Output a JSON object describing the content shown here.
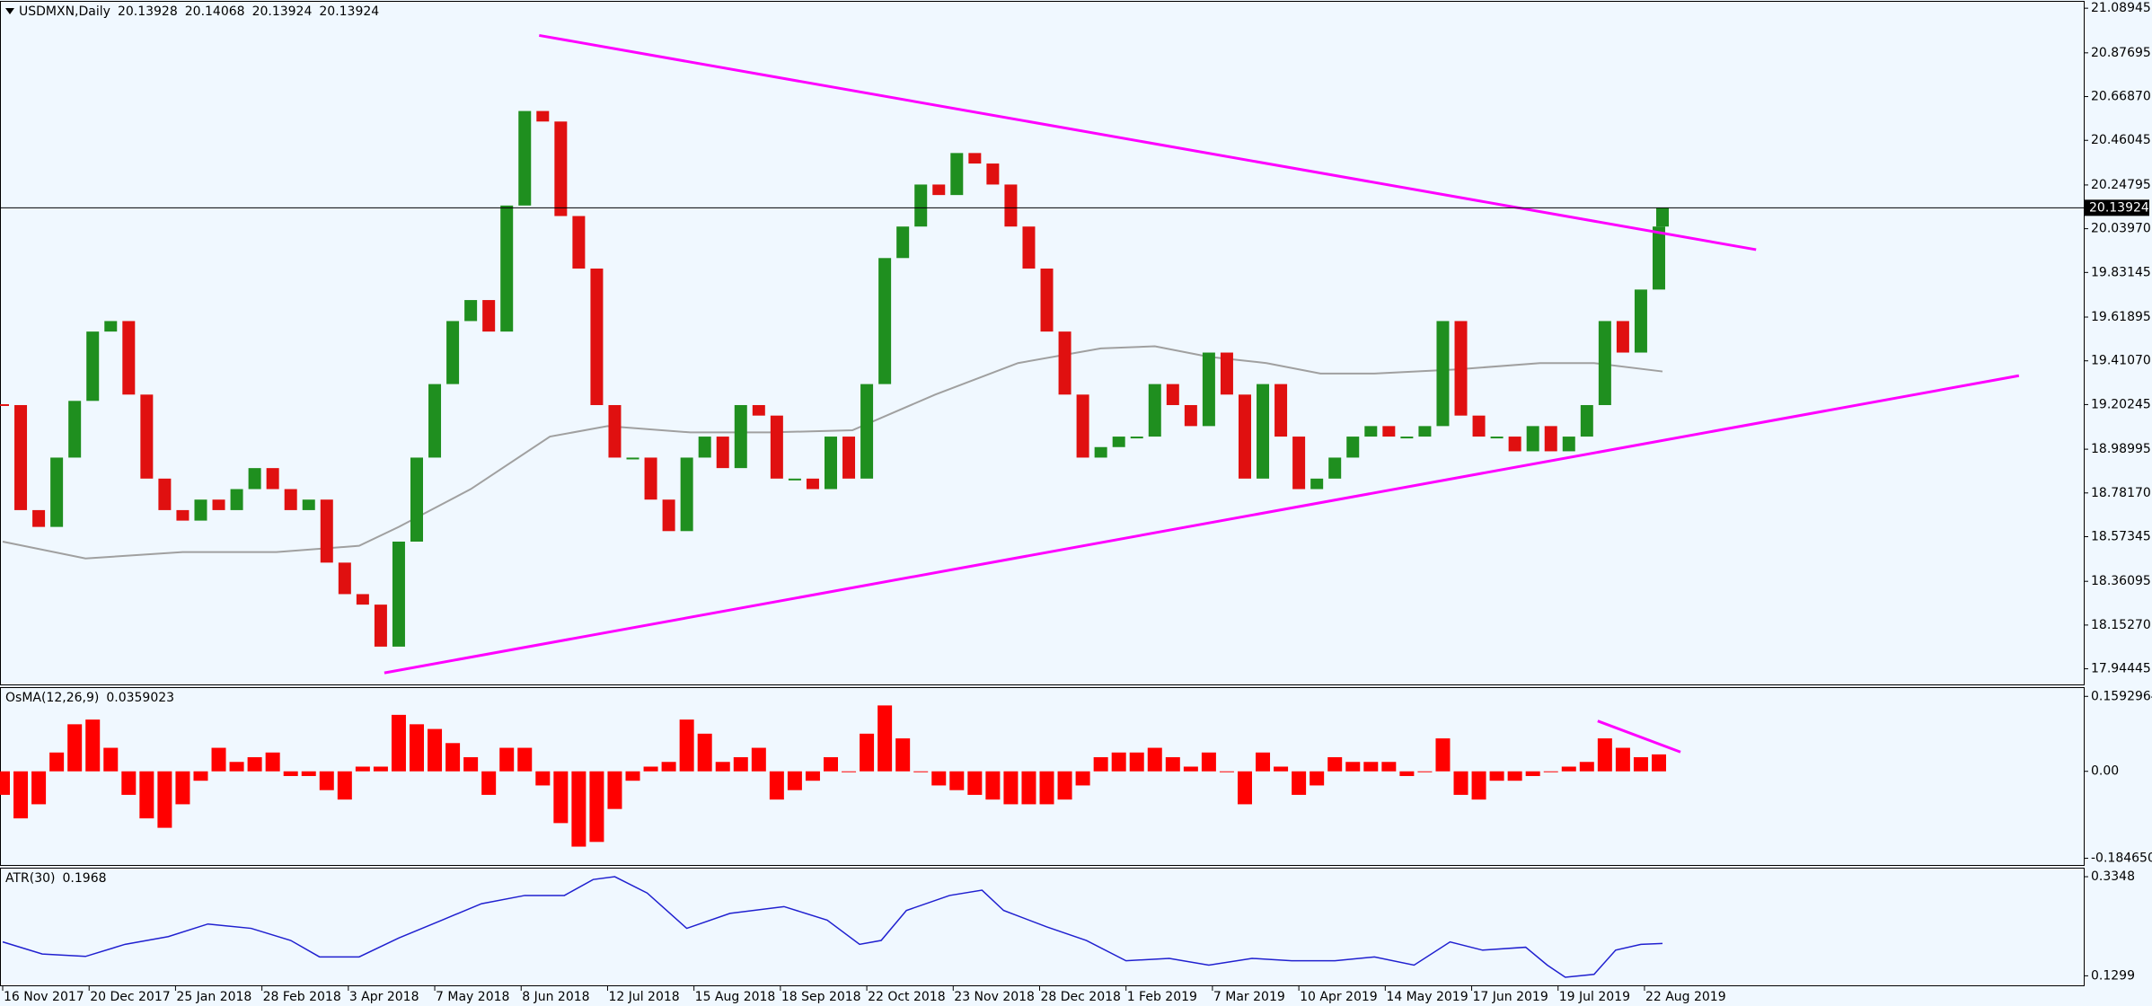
{
  "chart_data": [
    {
      "type": "candlestick",
      "title": "USDMXN,Daily",
      "ohlc": [
        20.13928,
        20.14068,
        20.13924,
        20.13924
      ],
      "x": [
        0,
        5,
        10,
        15,
        20,
        25,
        30,
        35,
        40,
        45,
        50,
        55,
        60,
        65,
        70,
        75,
        80,
        85,
        90,
        95,
        100,
        105,
        110,
        115,
        120,
        125,
        130,
        135,
        140,
        145,
        150,
        155,
        160,
        165,
        170,
        175,
        180,
        185,
        190,
        195,
        200,
        205,
        210,
        215,
        220,
        225,
        230,
        235,
        240,
        245,
        250,
        255,
        260,
        265,
        270,
        275,
        280,
        285,
        290,
        295,
        300,
        305,
        310,
        315,
        320,
        325,
        330,
        335,
        340,
        345,
        350,
        355,
        360,
        365,
        370,
        375,
        380,
        385,
        390,
        395,
        400,
        405,
        410,
        415,
        420,
        425,
        430,
        435,
        440,
        445,
        450,
        455,
        460,
        461
      ],
      "values": [
        19.2,
        18.7,
        18.62,
        18.95,
        19.22,
        19.55,
        19.6,
        19.25,
        18.85,
        18.7,
        18.65,
        18.75,
        18.7,
        18.8,
        18.9,
        18.8,
        18.7,
        18.75,
        18.45,
        18.3,
        18.25,
        18.05,
        18.55,
        18.95,
        19.3,
        19.6,
        19.7,
        19.55,
        20.15,
        20.6,
        20.55,
        20.1,
        19.85,
        19.2,
        18.95,
        18.95,
        18.75,
        18.6,
        18.95,
        19.05,
        18.9,
        19.2,
        19.15,
        18.85,
        18.85,
        18.8,
        19.05,
        18.85,
        19.3,
        19.9,
        20.05,
        20.25,
        20.2,
        20.4,
        20.35,
        20.25,
        20.05,
        19.85,
        19.55,
        19.25,
        18.95,
        19.0,
        19.05,
        19.05,
        19.3,
        19.2,
        19.1,
        19.45,
        19.25,
        18.85,
        19.3,
        19.05,
        18.8,
        18.85,
        18.95,
        19.05,
        19.1,
        19.05,
        19.05,
        19.1,
        19.6,
        19.15,
        19.05,
        19.05,
        18.98,
        19.1,
        18.98,
        19.05,
        19.2,
        19.6,
        19.45,
        19.75,
        20.05,
        20.13924
      ],
      "up_color": "#1f8f1f",
      "down_color": "#e01010",
      "xlim": [
        0,
        578
      ],
      "ylim": [
        17.87,
        21.12
      ],
      "yticks": [
        21.08945,
        20.87695,
        {
          "value": 20.6687,
          "label": "20.66870"
        },
        20.46045,
        20.24795,
        {
          "value": 20.0397,
          "label": "20.03970"
        },
        19.83145,
        19.61895,
        {
          "value": 19.4107,
          "label": "19.41070"
        },
        19.20245,
        18.98995,
        {
          "value": 18.7817,
          "label": "18.78170"
        },
        18.57345,
        18.36095,
        {
          "value": 18.1527,
          "label": "18.15270"
        },
        17.94445
      ],
      "last_price": 20.13924,
      "ma": {
        "color": "#a0a0a0",
        "x": [
          0,
          23,
          50,
          76,
          99,
          110,
          130,
          152,
          168,
          191,
          213,
          236,
          259,
          282,
          305,
          320,
          335,
          351,
          366,
          381,
          404,
          427,
          442,
          461
        ],
        "values": [
          18.55,
          18.47,
          18.5,
          18.5,
          18.53,
          18.62,
          18.8,
          19.05,
          19.1,
          19.07,
          19.07,
          19.08,
          19.25,
          19.4,
          19.47,
          19.48,
          19.43,
          19.4,
          19.35,
          19.35,
          19.37,
          19.4,
          19.4,
          19.36
        ]
      },
      "trendlines": [
        {
          "color": "#ff00ff",
          "x": [
            149,
            487
          ],
          "values": [
            20.96,
            19.94
          ]
        },
        {
          "color": "#ff00ff",
          "x": [
            106,
            560
          ],
          "values": [
            17.925,
            19.34
          ]
        }
      ]
    },
    {
      "type": "bar",
      "title": "OsMA(12,26,9)",
      "last": 0.0359023,
      "color": "#ff0000",
      "x": [
        0,
        5,
        10,
        15,
        20,
        25,
        30,
        35,
        40,
        45,
        50,
        55,
        60,
        65,
        70,
        75,
        80,
        85,
        90,
        95,
        100,
        105,
        110,
        115,
        120,
        125,
        130,
        135,
        140,
        145,
        150,
        155,
        160,
        165,
        170,
        175,
        180,
        185,
        190,
        195,
        200,
        205,
        210,
        215,
        220,
        225,
        230,
        235,
        240,
        245,
        250,
        255,
        260,
        265,
        270,
        275,
        280,
        285,
        290,
        295,
        300,
        305,
        310,
        315,
        320,
        325,
        330,
        335,
        340,
        345,
        350,
        355,
        360,
        365,
        370,
        375,
        380,
        385,
        390,
        395,
        400,
        405,
        410,
        415,
        420,
        425,
        430,
        435,
        440,
        445,
        450,
        455,
        460
      ],
      "values": [
        -0.05,
        -0.1,
        -0.07,
        0.04,
        0.1,
        0.11,
        0.05,
        -0.05,
        -0.1,
        -0.12,
        -0.07,
        -0.02,
        0.05,
        0.02,
        0.03,
        0.04,
        -0.01,
        -0.01,
        -0.04,
        -0.06,
        0.01,
        0.01,
        0.12,
        0.1,
        0.09,
        0.06,
        0.03,
        -0.05,
        0.05,
        0.05,
        -0.03,
        -0.11,
        -0.16,
        -0.15,
        -0.08,
        -0.02,
        0.01,
        0.02,
        0.11,
        0.08,
        0.02,
        0.03,
        0.05,
        -0.06,
        -0.04,
        -0.02,
        0.03,
        0.0,
        0.08,
        0.14,
        0.07,
        0.0,
        -0.03,
        -0.04,
        -0.05,
        -0.06,
        -0.07,
        -0.07,
        -0.07,
        -0.06,
        -0.03,
        0.03,
        0.04,
        0.04,
        0.05,
        0.03,
        0.01,
        0.04,
        0.0,
        -0.07,
        0.04,
        0.01,
        -0.05,
        -0.03,
        0.03,
        0.02,
        0.02,
        0.02,
        -0.01,
        0.0,
        0.07,
        -0.05,
        -0.06,
        -0.02,
        -0.02,
        -0.01,
        0.0,
        0.01,
        0.02,
        0.07,
        0.05,
        0.03,
        0.036
      ],
      "xlim": [
        0,
        578
      ],
      "ylim": [
        -0.199,
        0.177
      ],
      "yticks": [
        0.1592964,
        {
          "value": 0,
          "label": "0.00"
        },
        -0.1846504
      ],
      "trendlines": [
        {
          "color": "#ff00ff",
          "x": [
            443,
            466
          ],
          "values": [
            0.107,
            0.041
          ]
        }
      ]
    },
    {
      "type": "line",
      "title": "ATR(30)",
      "last": 0.1968,
      "color": "#2020d0",
      "x": [
        0,
        11,
        23,
        34,
        46,
        57,
        69,
        80,
        88,
        99,
        110,
        122,
        133,
        145,
        156,
        164,
        170,
        179,
        190,
        202,
        217,
        229,
        238,
        244,
        251,
        263,
        272,
        278,
        290,
        301,
        312,
        324,
        335,
        347,
        358,
        370,
        381,
        392,
        402,
        411,
        423,
        429,
        434,
        442,
        448,
        455,
        461
      ],
      "values": [
        0.2,
        0.175,
        0.17,
        0.195,
        0.211,
        0.237,
        0.228,
        0.203,
        0.169,
        0.169,
        0.208,
        0.245,
        0.279,
        0.296,
        0.296,
        0.329,
        0.3348,
        0.301,
        0.228,
        0.259,
        0.273,
        0.245,
        0.195,
        0.203,
        0.265,
        0.296,
        0.307,
        0.265,
        0.231,
        0.203,
        0.161,
        0.166,
        0.152,
        0.166,
        0.161,
        0.161,
        0.169,
        0.152,
        0.2,
        0.183,
        0.189,
        0.152,
        0.127,
        0.133,
        0.183,
        0.195,
        0.1968
      ],
      "xlim": [
        0,
        578
      ],
      "ylim": [
        0.1102,
        0.3516
      ],
      "yticks": [
        0.3348,
        0.1299
      ],
      "xticks": [
        {
          "value": 0,
          "label": "16 Nov 2017"
        },
        {
          "value": 24,
          "label": "20 Dec 2017"
        },
        {
          "value": 48,
          "label": "25 Jan 2018"
        },
        {
          "value": 72,
          "label": "28 Feb 2018"
        },
        {
          "value": 96,
          "label": "3 Apr 2018"
        },
        {
          "value": 120,
          "label": "7 May 2018"
        },
        {
          "value": 144,
          "label": "8 Jun 2018"
        },
        {
          "value": 168,
          "label": "12 Jul 2018"
        },
        {
          "value": 192,
          "label": "15 Aug 2018"
        },
        {
          "value": 216,
          "label": "18 Sep 2018"
        },
        {
          "value": 240,
          "label": "22 Oct 2018"
        },
        {
          "value": 264,
          "label": "23 Nov 2018"
        },
        {
          "value": 288,
          "label": "28 Dec 2018"
        },
        {
          "value": 312,
          "label": "1 Feb 2019"
        },
        {
          "value": 336,
          "label": "7 Mar 2019"
        },
        {
          "value": 360,
          "label": "10 Apr 2019"
        },
        {
          "value": 384,
          "label": "14 May 2019"
        },
        {
          "value": 408,
          "label": "17 Jun 2019"
        },
        {
          "value": 432,
          "label": "19 Jul 2019"
        },
        {
          "value": 456,
          "label": "22 Aug 2019"
        }
      ]
    }
  ]
}
